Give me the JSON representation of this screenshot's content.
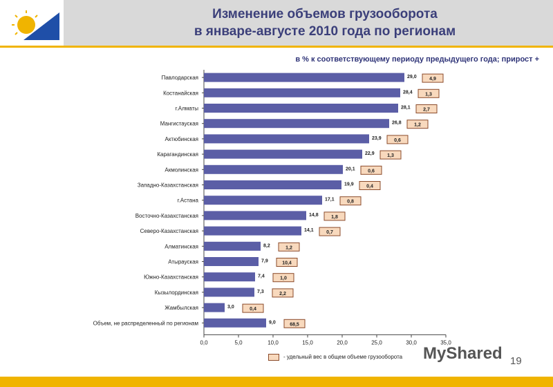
{
  "header": {
    "title_line1": "Изменение объемов грузооборота",
    "title_line2": "в январе-августе 2010 года по регионам",
    "subtitle": "в % к соответствующему периоду предыдущего года; прирост +"
  },
  "legend_label": "- удельный вес в общем объеме грузооборота",
  "page_number": "19",
  "watermark": "MyShared",
  "colors": {
    "bar": "#5b5ea6",
    "share_box_fill": "#f8d9bd",
    "share_box_border": "#8a4a2a",
    "accent": "#f0b400",
    "title": "#3b3f7a"
  },
  "chart_data": {
    "type": "bar",
    "orientation": "horizontal",
    "categories": [
      "Павлодарская",
      "Костанайская",
      "г.Алматы",
      "Мангистауская",
      "Актюбинская",
      "Карагандинская",
      "Акмолинская",
      "Западно-Казахстанская",
      "г.Астана",
      "Восточно-Казахстанская",
      "Северо-Казахстанская",
      "Алматинская",
      "Атырауская",
      "Южно-Казахстанская",
      "Кызылординская",
      "Жамбылская",
      "Объем, не распределенный по регионам"
    ],
    "values": [
      29.0,
      28.4,
      28.1,
      26.8,
      23.9,
      22.9,
      20.1,
      19.9,
      17.1,
      14.8,
      14.1,
      8.2,
      7.9,
      7.4,
      7.3,
      3.0,
      9.0
    ],
    "value_labels": [
      "29,0",
      "28,4",
      "28,1",
      "26,8",
      "23,9",
      "22,9",
      "20,1",
      "19,9",
      "17,1",
      "14,8",
      "14,1",
      "8,2",
      "7,9",
      "7,4",
      "7,3",
      "3,0",
      "9,0"
    ],
    "share_labels": [
      "4,9",
      "1,3",
      "2,7",
      "1,2",
      "0,6",
      "1,3",
      "0,6",
      "0,4",
      "0,8",
      "1,8",
      "0,7",
      "1,2",
      "10,4",
      "1,0",
      "2,2",
      "0,4",
      "68,5"
    ],
    "xlim": [
      0,
      35
    ],
    "xticks": [
      "0,0",
      "5,0",
      "10,0",
      "15,0",
      "20,0",
      "25,0",
      "30,0",
      "35,0"
    ],
    "grid": false
  }
}
